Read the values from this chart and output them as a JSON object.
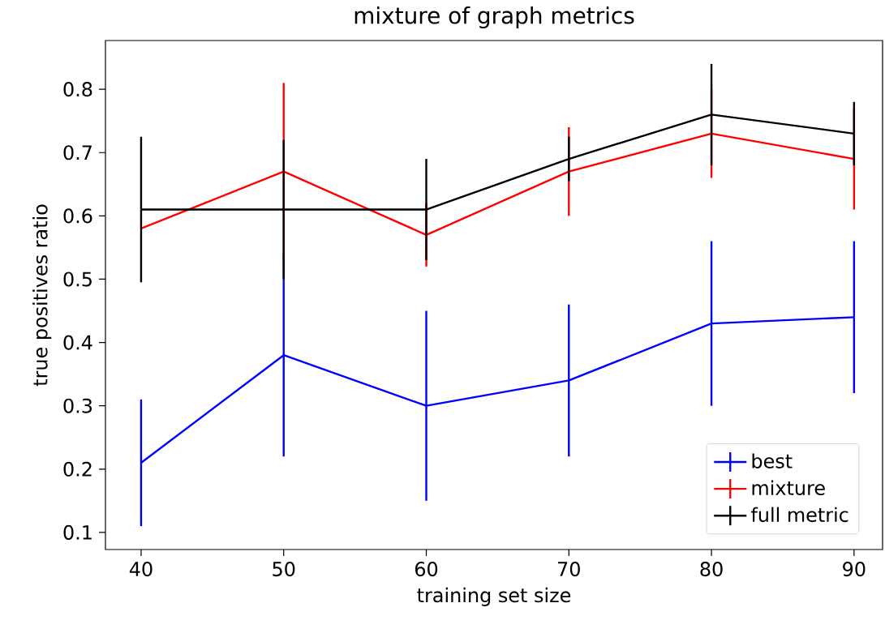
{
  "chart_data": {
    "type": "line",
    "title": "mixture of graph metrics",
    "xlabel": "training set size",
    "ylabel": "true positives ratio",
    "x": [
      40,
      50,
      60,
      70,
      80,
      90
    ],
    "series": [
      {
        "name": "best",
        "color": "#0000ff",
        "values": [
          0.21,
          0.38,
          0.3,
          0.34,
          0.43,
          0.44
        ],
        "errors": [
          0.1,
          0.16,
          0.15,
          0.12,
          0.13,
          0.12
        ]
      },
      {
        "name": "mixture",
        "color": "#ff0000",
        "values": [
          0.58,
          0.67,
          0.57,
          0.67,
          0.73,
          0.69
        ],
        "errors": [
          null,
          0.14,
          0.05,
          0.07,
          0.07,
          0.08
        ]
      },
      {
        "name": "full metric",
        "color": "#000000",
        "values": [
          0.61,
          0.61,
          0.61,
          0.69,
          0.76,
          0.73
        ],
        "errors": [
          0.115,
          0.11,
          0.08,
          0.035,
          0.08,
          0.05
        ]
      }
    ],
    "xlim": [
      37.5,
      92
    ],
    "ylim": [
      0.073,
      0.877
    ],
    "xticks": [
      40,
      50,
      60,
      70,
      80,
      90
    ],
    "yticks": [
      0.1,
      0.2,
      0.3,
      0.4,
      0.5,
      0.6,
      0.7,
      0.8
    ],
    "legend": "bottom right",
    "marker": "none",
    "line_style": "solid",
    "grid": false
  }
}
